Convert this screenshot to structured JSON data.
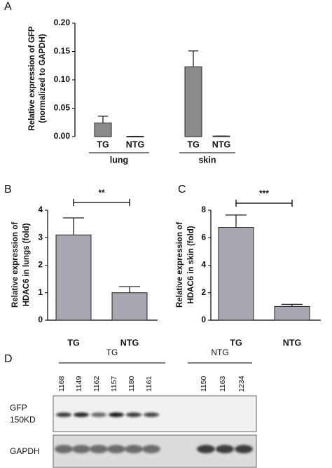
{
  "chart_data": [
    {
      "type": "bar",
      "panel": "A",
      "ylabel": [
        "Relative expression of GFP",
        "(normalized to GAPDH)"
      ],
      "categories": [
        "TG",
        "NTG",
        "TG",
        "NTG"
      ],
      "groups": [
        "lung",
        "skin"
      ],
      "values": [
        0.024,
        0.0005,
        0.123,
        0.001
      ],
      "errors": [
        0.012,
        0,
        0.028,
        0
      ],
      "color": "#8a8a8a",
      "ylim": [
        0,
        0.2
      ],
      "yticks": [
        {
          "value": 0,
          "label": "0.00"
        },
        {
          "value": 0.05,
          "label": "0.05"
        },
        {
          "value": 0.1,
          "label": "0.10"
        },
        {
          "value": 0.15,
          "label": "0.15"
        },
        {
          "value": 0.2,
          "label": "0.20"
        }
      ],
      "grid": false
    },
    {
      "type": "bar",
      "panel": "B",
      "ylabel": [
        "Relative expression of",
        "HDAC6 in lungs (fold)"
      ],
      "categories": [
        "TG",
        "NTG"
      ],
      "values": [
        3.1,
        1.0
      ],
      "errors": [
        0.62,
        0.22
      ],
      "color": "#a8a8b2",
      "ylim": [
        0,
        4
      ],
      "yticks": [
        0,
        1,
        2,
        3,
        4
      ],
      "grid": false,
      "significance": "**"
    },
    {
      "type": "bar",
      "panel": "C",
      "ylabel": [
        "Relative expression of",
        "HDAC6 in skin (fold)"
      ],
      "categories": [
        "TG",
        "NTG"
      ],
      "values": [
        6.75,
        1.0
      ],
      "errors": [
        0.9,
        0.15
      ],
      "color": "#a8a8b2",
      "ylim": [
        0,
        8
      ],
      "yticks": [
        0,
        2,
        4,
        6,
        8
      ],
      "grid": false,
      "significance": "***"
    }
  ],
  "blot": {
    "panel": "D",
    "groups": [
      {
        "name": "TG",
        "lanes": [
          "1168",
          "1149",
          "1162",
          "1157",
          "1180",
          "1161"
        ]
      },
      {
        "name": "NTG",
        "lanes": [
          "1150",
          "1163",
          "1234"
        ]
      }
    ],
    "rows": [
      [
        "GFP",
        "150KD"
      ],
      [
        "GAPDH"
      ]
    ]
  }
}
